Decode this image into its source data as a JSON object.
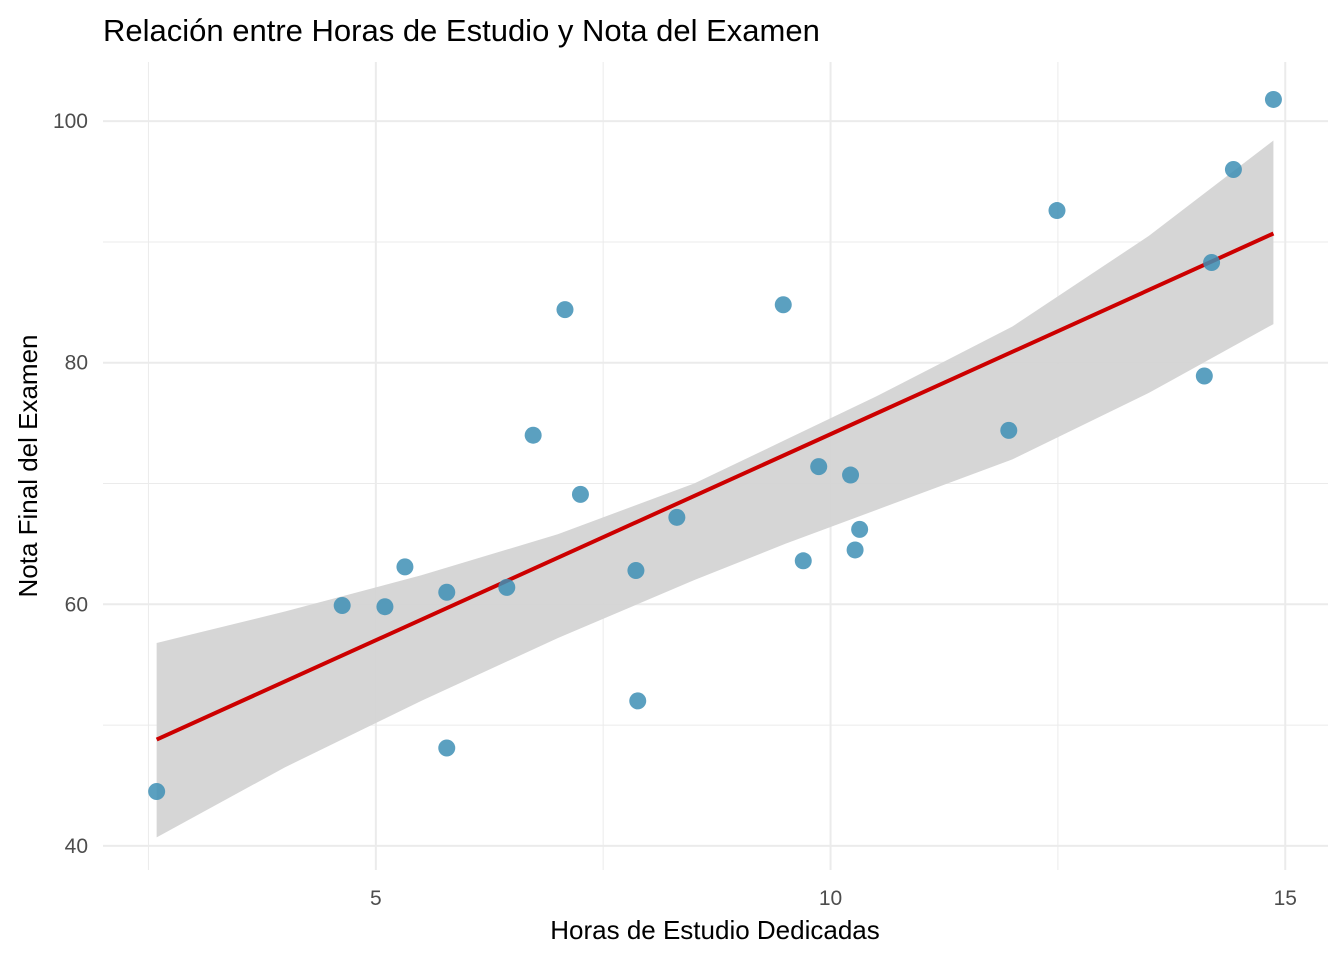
{
  "chart_data": {
    "type": "scatter",
    "title": "Relación entre Horas de Estudio y Nota del Examen",
    "xlabel": "Horas de Estudio Dedicadas",
    "ylabel": "Nota Final del Examen",
    "xlim": [
      2.0,
      15.47
    ],
    "ylim": [
      38.0,
      104.9
    ],
    "x_ticks": [
      5,
      10,
      15
    ],
    "y_ticks": [
      40,
      60,
      80,
      100
    ],
    "x_minor": [
      2.5,
      7.5,
      12.5
    ],
    "y_minor": [
      50,
      70,
      90
    ],
    "grid": true,
    "points": [
      [
        2.59,
        44.5
      ],
      [
        4.63,
        59.9
      ],
      [
        5.1,
        59.8
      ],
      [
        5.32,
        63.1
      ],
      [
        5.78,
        61.0
      ],
      [
        5.78,
        48.1
      ],
      [
        6.44,
        61.4
      ],
      [
        6.73,
        74.0
      ],
      [
        7.08,
        84.4
      ],
      [
        7.25,
        69.1
      ],
      [
        7.86,
        62.8
      ],
      [
        7.88,
        52.0
      ],
      [
        8.31,
        67.2
      ],
      [
        9.48,
        84.8
      ],
      [
        9.7,
        63.6
      ],
      [
        9.87,
        71.4
      ],
      [
        10.22,
        70.7
      ],
      [
        10.27,
        64.5
      ],
      [
        10.32,
        66.2
      ],
      [
        11.96,
        74.4
      ],
      [
        12.49,
        92.6
      ],
      [
        14.11,
        78.9
      ],
      [
        14.19,
        88.3
      ],
      [
        14.43,
        96.0
      ],
      [
        14.87,
        101.8
      ]
    ],
    "fit_line": {
      "x": [
        2.59,
        14.87
      ],
      "y": [
        48.8,
        90.7
      ]
    },
    "confidence_band": {
      "x": [
        2.59,
        4.0,
        5.5,
        7.0,
        8.5,
        9.5,
        10.5,
        12.0,
        13.5,
        14.87
      ],
      "lower": [
        40.7,
        46.5,
        52.0,
        57.2,
        62.0,
        65.0,
        67.8,
        72.0,
        77.5,
        83.2
      ],
      "upper": [
        56.8,
        59.4,
        62.4,
        65.8,
        70.0,
        73.6,
        77.2,
        83.0,
        90.5,
        98.4
      ]
    },
    "colors": {
      "points": "#3e8fb5",
      "line": "#cc0000",
      "band": "#d4d4d4",
      "grid": "#ebebeb"
    }
  }
}
